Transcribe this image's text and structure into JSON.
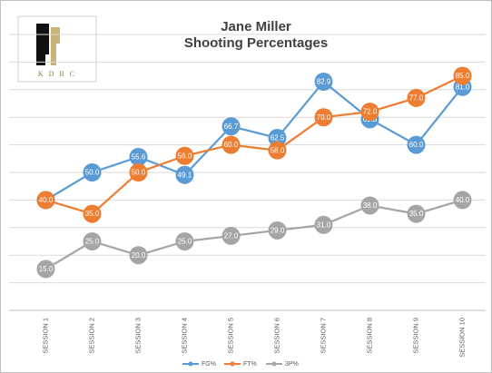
{
  "chart_data": {
    "type": "line",
    "title": "Jane Miller",
    "subtitle": "Shooting Percentages",
    "logo_text": "K D B C",
    "categories": [
      "SESSION 1",
      "SESSION 2",
      "SESSION 3",
      "SESSION 4",
      "SESSION 5",
      "SESSION 6",
      "SESSION 7",
      "SESSION 8",
      "SESSION 9",
      "SESSION 10"
    ],
    "series": [
      {
        "name": "FG%",
        "color": "#5b9bd5",
        "values": [
          40,
          50,
          55.6,
          49.1,
          66.7,
          62.5,
          82.9,
          69.3,
          60,
          81
        ],
        "value_labels": [
          "40.0",
          "50.0",
          "55.6",
          "49.1",
          "66.7",
          "62.5",
          "82.9",
          "69.3",
          "60.0",
          "81.0"
        ]
      },
      {
        "name": "FT%",
        "color": "#ed7d31",
        "values": [
          40,
          35,
          50,
          56,
          60,
          58,
          70,
          72,
          77,
          85
        ],
        "value_labels": [
          "40.0",
          "35.0",
          "50.0",
          "56.0",
          "60.0",
          "58.0",
          "70.0",
          "72.0",
          "77.0",
          "85.0"
        ]
      },
      {
        "name": "3P%",
        "color": "#a5a5a5",
        "values": [
          15,
          25,
          20,
          25,
          27,
          29,
          31,
          38,
          35,
          40
        ],
        "value_labels": [
          "15.0",
          "25.0",
          "20.0",
          "25.0",
          "27.0",
          "29.0",
          "31.0",
          "38.0",
          "35.0",
          "40.0"
        ]
      }
    ],
    "ylim": [
      0,
      100
    ],
    "yticks": [
      0,
      10,
      20,
      30,
      40,
      50,
      60,
      70,
      80,
      90,
      100
    ],
    "grid": true,
    "legend": "bottom"
  }
}
